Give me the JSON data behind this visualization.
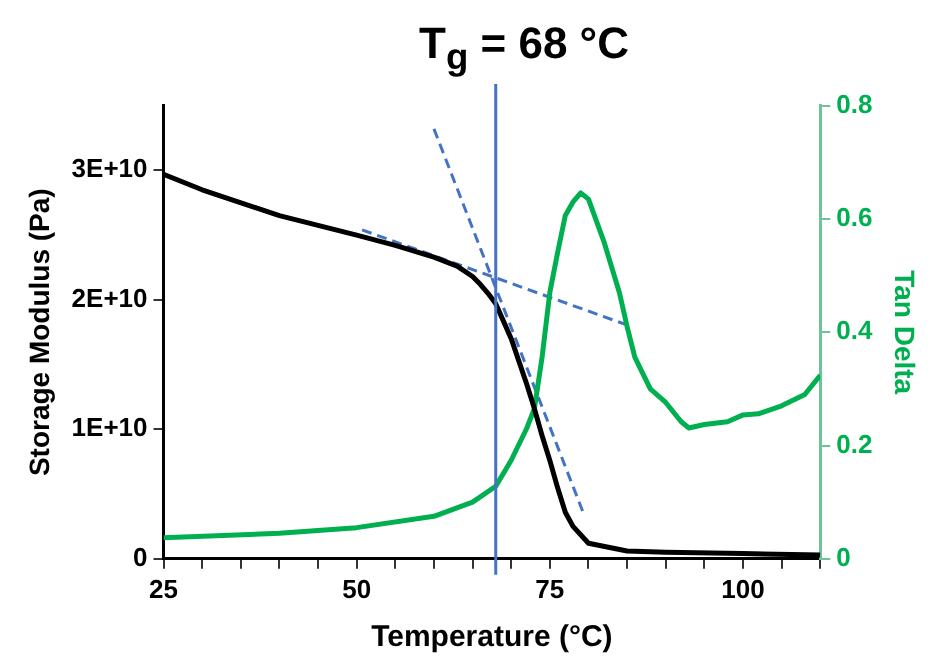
{
  "chart_data": {
    "type": "line",
    "title": "T$_{g}$ = 68 °C",
    "xlabel": "Temperature (°C)",
    "ylabel": "Storage Modulus (Pa)",
    "y2label": "Tan Delta",
    "series": [
      {
        "color": "#000000",
        "x": [
          25,
          30,
          40,
          50,
          55,
          60,
          63,
          65,
          66,
          67,
          68,
          70,
          72,
          73,
          74,
          75,
          76,
          77,
          78,
          80,
          85,
          90,
          100,
          110
        ],
        "values": [
          29700000000,
          28500000000,
          26500000000,
          25000000000,
          24200000000,
          23300000000,
          22600000000,
          21800000000,
          21200000000,
          20500000000,
          19700000000,
          17000000000,
          13500000000,
          11600000000,
          9500000000,
          7600000000,
          5500000000,
          3600000000,
          2500000000,
          1200000000,
          600000000,
          500000000,
          400000000,
          300000000
        ]
      },
      {
        "color": "#00b050",
        "axis": "y2",
        "x": [
          25,
          40,
          50,
          60,
          65,
          68,
          70,
          72,
          73,
          74,
          75,
          76,
          77,
          78,
          79,
          80,
          82,
          84,
          85,
          86,
          88,
          90,
          92,
          93,
          95,
          98,
          100,
          102,
          105,
          108,
          110
        ],
        "values": [
          0.037,
          0.045,
          0.055,
          0.075,
          0.1,
          0.128,
          0.174,
          0.23,
          0.265,
          0.356,
          0.47,
          0.54,
          0.606,
          0.63,
          0.646,
          0.635,
          0.56,
          0.47,
          0.41,
          0.356,
          0.3,
          0.276,
          0.242,
          0.231,
          0.237,
          0.242,
          0.254,
          0.256,
          0.27,
          0.29,
          0.324
        ]
      },
      {
        "color": "#4472c4",
        "line_style": "dashed",
        "x": [
          50.7,
          84.8
        ],
        "values": [
          25400000000,
          18100000000
        ]
      },
      {
        "color": "#4472c4",
        "line_style": "dashed",
        "x": [
          60,
          79.3
        ],
        "values": [
          33200000000,
          3600000000
        ]
      }
    ],
    "xlim": [
      25,
      110
    ],
    "xticks": [
      25,
      {
        "value": 30,
        "label": null
      },
      {
        "value": 35,
        "label": null
      },
      {
        "value": 40,
        "label": null
      },
      {
        "value": 45,
        "label": null
      },
      50,
      {
        "value": 55,
        "label": null
      },
      {
        "value": 60,
        "label": null
      },
      {
        "value": 65,
        "label": null
      },
      {
        "value": 70,
        "label": null
      },
      75,
      {
        "value": 80,
        "label": null
      },
      {
        "value": 85,
        "label": null
      },
      {
        "value": 90,
        "label": null
      },
      {
        "value": 95,
        "label": null
      },
      100,
      {
        "value": 105,
        "label": null
      },
      {
        "value": 110,
        "label": null
      }
    ],
    "ylim": [
      0,
      35000000000
    ],
    "yticks": [
      0,
      {
        "value": 10000000000,
        "label": "1E+10"
      },
      {
        "value": 20000000000,
        "label": "2E+10"
      },
      {
        "value": 30000000000,
        "label": "3E+10"
      }
    ],
    "y2lim": [
      0,
      0.8
    ],
    "y2ticks": [
      0,
      0.2,
      0.4,
      0.6,
      0.8
    ],
    "ref_lines": [
      {
        "axis": "x",
        "value": 68,
        "color": "#4472c4"
      }
    ],
    "grid": false,
    "legend": false,
    "marker": "none",
    "line_style": "solid"
  }
}
